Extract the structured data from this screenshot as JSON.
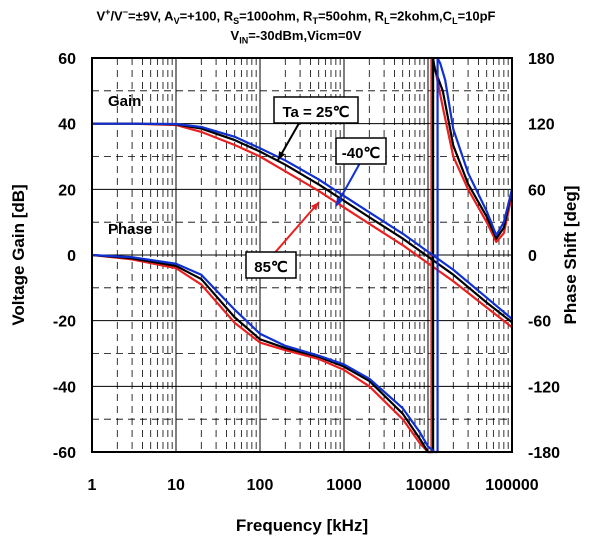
{
  "chart_data": {
    "type": "line",
    "title_line1_parts": [
      "V",
      "+",
      "/V",
      "−",
      "=±9V, A",
      "V",
      "=+100, R",
      "S",
      "=100ohm, R",
      "T",
      "=50ohm, R",
      "L",
      "=2kohm,C",
      "L",
      "=10pF"
    ],
    "title_line2_parts": [
      "V",
      "IN",
      "=-30dBm,Vicm=0V"
    ],
    "xlabel": "Frequency [kHz]",
    "ylabel_left": "Voltage Gain [dB]",
    "ylabel_right": "Phase Shift [deg]",
    "x_scale": "log",
    "xlim": [
      1,
      100000
    ],
    "ylim_left": [
      -60,
      60
    ],
    "ylim_right": [
      -180,
      180
    ],
    "x_ticks": [
      "1",
      "10",
      "100",
      "1000",
      "10000",
      "100000"
    ],
    "y_ticks_left": [
      "60",
      "40",
      "20",
      "0",
      "-20",
      "-40",
      "-60"
    ],
    "y_ticks_right": [
      "180",
      "120",
      "60",
      "0",
      "-60",
      "-120",
      "-180"
    ],
    "grid": true,
    "annotations": {
      "gain": "Gain",
      "phase": "Phase",
      "ta25": "Ta = 25℃",
      "minus40": "-40℃",
      "c85": "85℃"
    },
    "colors": {
      "ta25": "#000000",
      "minus40": "#1030d0",
      "c85": "#e82020"
    },
    "series": [
      {
        "name": "Ta = 25℃",
        "kind": "gain",
        "axis": "left",
        "x": [
          1,
          3,
          10,
          20,
          50,
          100,
          200,
          500,
          1000,
          2000,
          5000,
          10000,
          20000,
          50000,
          100000
        ],
        "y": [
          40,
          40,
          39.8,
          38.5,
          35,
          31.5,
          27.5,
          21.5,
          16.5,
          11.5,
          5,
          -0.5,
          -6,
          -14.5,
          -20.5
        ]
      },
      {
        "name": "-40℃",
        "kind": "gain",
        "axis": "left",
        "x": [
          1,
          3,
          10,
          20,
          50,
          100,
          200,
          500,
          1000,
          2000,
          5000,
          10000,
          20000,
          50000,
          100000
        ],
        "y": [
          40,
          40,
          39.9,
          39,
          36,
          32.5,
          28.8,
          23,
          18,
          13,
          6.5,
          1,
          -4.5,
          -13,
          -19.5
        ]
      },
      {
        "name": "85℃",
        "kind": "gain",
        "axis": "left",
        "x": [
          1,
          3,
          10,
          20,
          50,
          100,
          200,
          500,
          1000,
          2000,
          5000,
          10000,
          20000,
          50000,
          100000
        ],
        "y": [
          40,
          40,
          39.6,
          37.5,
          33.5,
          30,
          25.5,
          19.5,
          14.5,
          9.5,
          3,
          -2.5,
          -8,
          -16,
          -22
        ]
      },
      {
        "name": "Ta = 25℃",
        "kind": "phase",
        "axis": "right",
        "x": [
          1,
          3,
          10,
          20,
          50,
          100,
          200,
          500,
          1000,
          2000,
          5000,
          8000,
          10000,
          11500,
          11501,
          12000,
          15000,
          20000,
          30000,
          50000,
          65000,
          80000,
          100000
        ],
        "y": [
          0,
          -3,
          -10,
          -22,
          -57,
          -77,
          -85,
          -93,
          -102,
          -115,
          -145,
          -168,
          -180,
          -180,
          180,
          170,
          150,
          100,
          65,
          35,
          15,
          25,
          60
        ]
      },
      {
        "name": "-40℃",
        "kind": "phase",
        "axis": "right",
        "x": [
          1,
          3,
          10,
          20,
          50,
          100,
          200,
          500,
          1000,
          2000,
          5000,
          8000,
          10000,
          12000,
          13000,
          13001,
          14000,
          16000,
          20000,
          30000,
          50000,
          65000,
          80000,
          100000
        ],
        "y": [
          0,
          -2,
          -8,
          -18,
          -50,
          -72,
          -83,
          -92,
          -100,
          -113,
          -140,
          -162,
          -175,
          -180,
          -180,
          180,
          175,
          160,
          115,
          75,
          40,
          18,
          30,
          60
        ]
      },
      {
        "name": "85℃",
        "kind": "phase",
        "axis": "right",
        "x": [
          1,
          3,
          10,
          20,
          50,
          100,
          200,
          500,
          1000,
          2000,
          5000,
          8000,
          10000,
          11000,
          11001,
          12000,
          15000,
          20000,
          30000,
          50000,
          65000,
          80000,
          100000
        ],
        "y": [
          0,
          -4,
          -12,
          -27,
          -62,
          -80,
          -87,
          -95,
          -105,
          -120,
          -150,
          -172,
          -180,
          -180,
          180,
          172,
          135,
          90,
          60,
          30,
          12,
          20,
          55
        ]
      }
    ]
  }
}
